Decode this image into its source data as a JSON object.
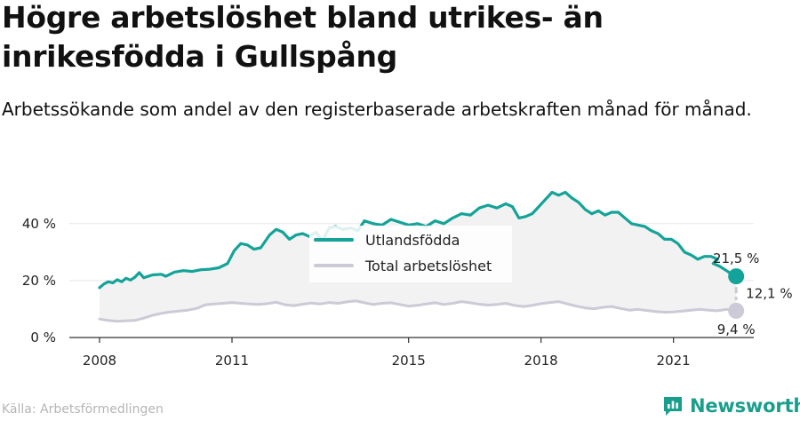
{
  "title": "Högre arbetslöshet bland utrikes- än inrikesfödda i Gullspång",
  "subtitle": "Arbetssökande som andel av den registerbaserade arbetskraften månad för månad.",
  "source": "Källa: Arbetsförmedlingen",
  "brand": {
    "name": "Newsworthy",
    "icon": "newsworthy-logo-icon"
  },
  "colors": {
    "foreign": "#14a398",
    "total": "#cbcad6",
    "area": "#f2f2f2",
    "axis": "#333333",
    "grid": "#e6e6e6"
  },
  "chart_data": {
    "type": "line",
    "title": "Högre arbetslöshet bland utrikes- än inrikesfödda i Gullspång",
    "subtitle": "Arbetssökande som andel av den registerbaserade arbetskraften månad för månad.",
    "x_ticks": [
      "2008",
      "2011",
      "2015",
      "2018",
      "2021"
    ],
    "y_ticks": [
      "0 %",
      "20 %",
      "40 %"
    ],
    "ylim": [
      0,
      52
    ],
    "xlim": [
      2007.6,
      2022.7
    ],
    "grid": "horizontal",
    "legend_position": "top-center",
    "series": [
      {
        "name": "Utlandsfödda",
        "color": "#14a398",
        "points": [
          [
            2008.0,
            17.5
          ],
          [
            2008.1,
            18.8
          ],
          [
            2008.2,
            19.6
          ],
          [
            2008.3,
            19.2
          ],
          [
            2008.4,
            20.3
          ],
          [
            2008.5,
            19.6
          ],
          [
            2008.6,
            20.8
          ],
          [
            2008.7,
            20.2
          ],
          [
            2008.8,
            21.2
          ],
          [
            2008.9,
            22.8
          ],
          [
            2009.0,
            21.0
          ],
          [
            2009.2,
            22.0
          ],
          [
            2009.4,
            22.2
          ],
          [
            2009.5,
            21.5
          ],
          [
            2009.7,
            23.0
          ],
          [
            2009.9,
            23.5
          ],
          [
            2010.1,
            23.2
          ],
          [
            2010.3,
            23.8
          ],
          [
            2010.5,
            24.0
          ],
          [
            2010.7,
            24.5
          ],
          [
            2010.9,
            26.0
          ],
          [
            2011.05,
            30.5
          ],
          [
            2011.2,
            33.0
          ],
          [
            2011.35,
            32.5
          ],
          [
            2011.5,
            31.0
          ],
          [
            2011.65,
            31.5
          ],
          [
            2011.85,
            36.0
          ],
          [
            2012.0,
            38.0
          ],
          [
            2012.15,
            37.0
          ],
          [
            2012.3,
            34.5
          ],
          [
            2012.45,
            36.0
          ],
          [
            2012.6,
            36.5
          ],
          [
            2012.75,
            35.5
          ],
          [
            2012.9,
            37.0
          ],
          [
            2013.05,
            34.0
          ],
          [
            2013.2,
            38.5
          ],
          [
            2013.35,
            39.0
          ],
          [
            2013.5,
            38.0
          ],
          [
            2013.7,
            38.5
          ],
          [
            2013.85,
            37.5
          ],
          [
            2014.0,
            41.0
          ],
          [
            2014.2,
            40.0
          ],
          [
            2014.4,
            39.5
          ],
          [
            2014.6,
            41.5
          ],
          [
            2014.8,
            40.5
          ],
          [
            2015.0,
            39.5
          ],
          [
            2015.2,
            40.0
          ],
          [
            2015.4,
            39.0
          ],
          [
            2015.6,
            41.0
          ],
          [
            2015.8,
            40.0
          ],
          [
            2016.0,
            42.0
          ],
          [
            2016.2,
            43.5
          ],
          [
            2016.4,
            43.0
          ],
          [
            2016.6,
            45.5
          ],
          [
            2016.8,
            46.5
          ],
          [
            2017.0,
            45.5
          ],
          [
            2017.2,
            47.0
          ],
          [
            2017.35,
            46.0
          ],
          [
            2017.5,
            42.0
          ],
          [
            2017.65,
            42.5
          ],
          [
            2017.8,
            43.5
          ],
          [
            2017.95,
            46.0
          ],
          [
            2018.1,
            48.5
          ],
          [
            2018.25,
            51.0
          ],
          [
            2018.4,
            50.0
          ],
          [
            2018.55,
            51.0
          ],
          [
            2018.7,
            49.0
          ],
          [
            2018.85,
            47.5
          ],
          [
            2019.0,
            45.0
          ],
          [
            2019.15,
            43.5
          ],
          [
            2019.3,
            44.5
          ],
          [
            2019.45,
            43.0
          ],
          [
            2019.6,
            44.0
          ],
          [
            2019.75,
            44.0
          ],
          [
            2019.9,
            42.0
          ],
          [
            2020.05,
            40.0
          ],
          [
            2020.2,
            39.5
          ],
          [
            2020.35,
            39.0
          ],
          [
            2020.5,
            37.5
          ],
          [
            2020.65,
            36.5
          ],
          [
            2020.8,
            34.5
          ],
          [
            2020.95,
            34.5
          ],
          [
            2021.1,
            33.0
          ],
          [
            2021.25,
            30.0
          ],
          [
            2021.4,
            29.0
          ],
          [
            2021.55,
            27.5
          ],
          [
            2021.7,
            28.5
          ],
          [
            2021.85,
            28.5
          ],
          [
            2022.0,
            27.5
          ],
          [
            2021.9,
            26.0
          ],
          [
            2022.05,
            25.0
          ],
          [
            2022.2,
            23.5
          ],
          [
            2022.35,
            22.0
          ],
          [
            2022.42,
            21.5
          ]
        ]
      },
      {
        "name": "Total arbetslöshet",
        "color": "#cbcad6",
        "points": [
          [
            2008.0,
            6.5
          ],
          [
            2008.2,
            6.0
          ],
          [
            2008.4,
            5.7
          ],
          [
            2008.6,
            5.9
          ],
          [
            2008.8,
            6.0
          ],
          [
            2009.0,
            6.8
          ],
          [
            2009.2,
            7.8
          ],
          [
            2009.4,
            8.5
          ],
          [
            2009.6,
            9.0
          ],
          [
            2009.8,
            9.3
          ],
          [
            2010.0,
            9.6
          ],
          [
            2010.2,
            10.2
          ],
          [
            2010.4,
            11.5
          ],
          [
            2010.6,
            11.8
          ],
          [
            2010.8,
            12.0
          ],
          [
            2011.0,
            12.3
          ],
          [
            2011.2,
            12.0
          ],
          [
            2011.4,
            11.8
          ],
          [
            2011.6,
            11.6
          ],
          [
            2011.8,
            11.9
          ],
          [
            2012.0,
            12.4
          ],
          [
            2012.2,
            11.5
          ],
          [
            2012.4,
            11.2
          ],
          [
            2012.6,
            11.7
          ],
          [
            2012.8,
            12.1
          ],
          [
            2013.0,
            11.8
          ],
          [
            2013.2,
            12.3
          ],
          [
            2013.4,
            12.0
          ],
          [
            2013.6,
            12.5
          ],
          [
            2013.8,
            12.9
          ],
          [
            2014.0,
            12.2
          ],
          [
            2014.2,
            11.6
          ],
          [
            2014.4,
            12.0
          ],
          [
            2014.6,
            12.2
          ],
          [
            2014.8,
            11.6
          ],
          [
            2015.0,
            11.0
          ],
          [
            2015.2,
            11.3
          ],
          [
            2015.4,
            11.8
          ],
          [
            2015.6,
            12.2
          ],
          [
            2015.8,
            11.6
          ],
          [
            2016.0,
            12.0
          ],
          [
            2016.2,
            12.6
          ],
          [
            2016.4,
            12.2
          ],
          [
            2016.6,
            11.7
          ],
          [
            2016.8,
            11.4
          ],
          [
            2017.0,
            11.6
          ],
          [
            2017.2,
            12.0
          ],
          [
            2017.4,
            11.3
          ],
          [
            2017.6,
            10.9
          ],
          [
            2017.8,
            11.3
          ],
          [
            2018.0,
            11.9
          ],
          [
            2018.2,
            12.3
          ],
          [
            2018.4,
            12.6
          ],
          [
            2018.6,
            11.8
          ],
          [
            2018.8,
            11.0
          ],
          [
            2019.0,
            10.4
          ],
          [
            2019.2,
            10.1
          ],
          [
            2019.4,
            10.6
          ],
          [
            2019.6,
            10.9
          ],
          [
            2019.8,
            10.2
          ],
          [
            2020.0,
            9.6
          ],
          [
            2020.2,
            9.9
          ],
          [
            2020.4,
            9.5
          ],
          [
            2020.6,
            9.1
          ],
          [
            2020.8,
            8.9
          ],
          [
            2021.0,
            9.0
          ],
          [
            2021.2,
            9.3
          ],
          [
            2021.4,
            9.6
          ],
          [
            2021.6,
            9.9
          ],
          [
            2021.8,
            9.6
          ],
          [
            2022.0,
            9.4
          ],
          [
            2022.2,
            9.9
          ],
          [
            2022.42,
            9.4
          ]
        ]
      }
    ],
    "end_labels": {
      "foreign": "21,5 %",
      "total": "9,4 %",
      "difference": "12,1 %"
    }
  }
}
